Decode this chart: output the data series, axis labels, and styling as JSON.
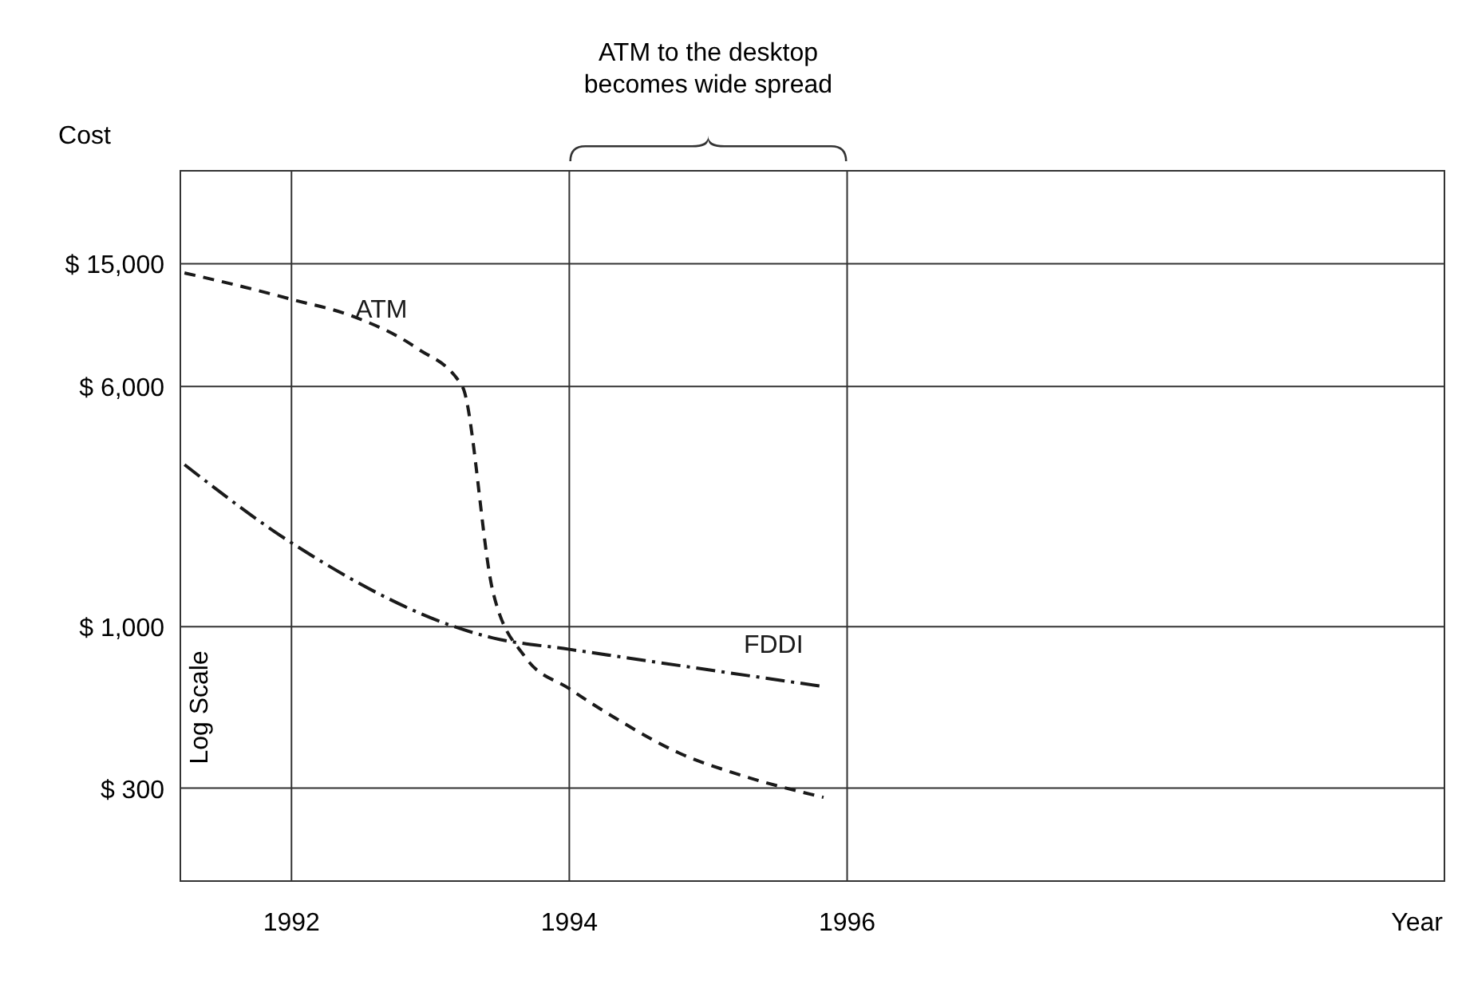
{
  "chart_data": {
    "type": "line",
    "xlabel": "Year",
    "ylabel": "Cost",
    "log": "y",
    "xlim": [
      1991.2,
      2000.3
    ],
    "xticks": [
      1992,
      1994,
      1996
    ],
    "ylim": [
      150,
      30000
    ],
    "yticks": [
      {
        "value": 15000,
        "label": "$ 15,000"
      },
      {
        "value": 6000,
        "label": "$ 6,000"
      },
      {
        "value": 1000,
        "label": "$ 1,000"
      },
      {
        "value": 300,
        "label": "$ 300"
      }
    ],
    "grid": true,
    "series": [
      {
        "name": "ATM",
        "color": "#1a1a1a",
        "line_style": "dashed",
        "x": [
          1991.23,
          1991.66,
          1992,
          1992.45,
          1992.9,
          1993.23,
          1993.45,
          1993.68,
          1994,
          1994.35,
          1994.79,
          1995.24,
          1995.83
        ],
        "values": [
          14000,
          12600,
          11500,
          10100,
          8000,
          6000,
          1300,
          800,
          630,
          500,
          390,
          330,
          280
        ]
      },
      {
        "name": "FDDI",
        "color": "#1a1a1a",
        "line_style": "dashdot",
        "x": [
          1991.23,
          1992,
          1993.45,
          1994,
          1995.83
        ],
        "values": [
          3350,
          1870,
          920,
          845,
          640
        ]
      }
    ],
    "annotations": [
      "ATM to the desktop becomes wide spread",
      "Log Scale"
    ]
  }
}
